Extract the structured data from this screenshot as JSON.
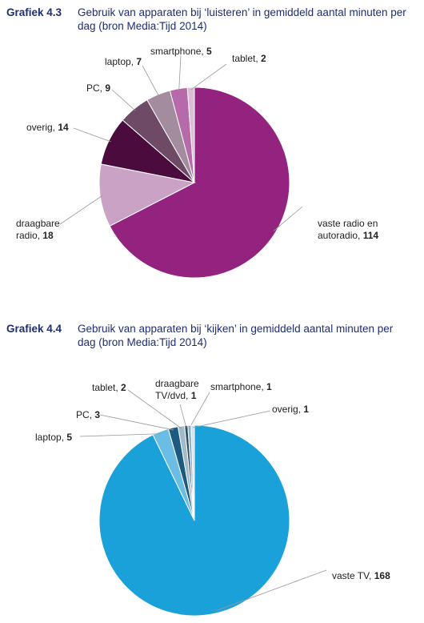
{
  "chart_data": [
    {
      "type": "pie",
      "label": "Grafiek 4.3",
      "title": "Gebruik van apparaten bij ‘luisteren’ in gemiddeld aantal minuten per dag (bron Media:Tijd 2014)",
      "categories": [
        "vaste radio en autoradio,",
        "draagbare radio,",
        "overig,",
        "PC,",
        "laptop,",
        "smartphone,",
        "tablet,"
      ],
      "values": [
        114,
        18,
        14,
        9,
        7,
        5,
        2
      ],
      "colors": [
        "#93237f",
        "#c9a2c5",
        "#4b0b3d",
        "#6e4a67",
        "#a28c9e",
        "#b76aa9",
        "#dcbcd7"
      ]
    },
    {
      "type": "pie",
      "label": "Grafiek 4.4",
      "title": "Gebruik van apparaten bij ‘kijken’ in gemiddeld aantal minuten per dag (bron Media:Tijd 2014)",
      "categories": [
        "vaste TV,",
        "laptop,",
        "PC,",
        "tablet,",
        "draagbare TV/dvd,",
        "smartphone,",
        "overig,"
      ],
      "values": [
        168,
        5,
        3,
        2,
        1,
        1,
        1
      ],
      "colors": [
        "#1ba1d9",
        "#6cbde6",
        "#1b5b82",
        "#a3bacb",
        "#2b4b62",
        "#8cb2ca",
        "#d2e2ec"
      ]
    }
  ]
}
